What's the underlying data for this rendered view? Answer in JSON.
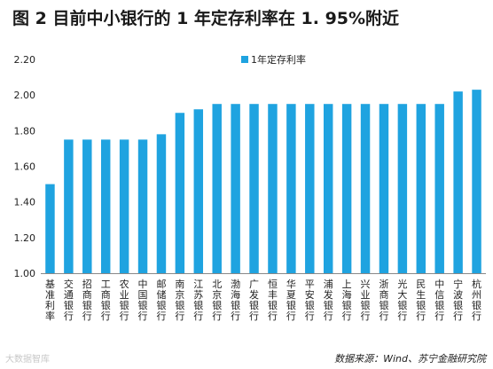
{
  "title": "图 2  目前中小银行的 1 年定存利率在 1. 95%附近",
  "source": "数据来源：Wind、苏宁金融研究院",
  "watermark": "大数据智库",
  "chart_data": {
    "type": "bar",
    "title": "图 2  目前中小银行的 1 年定存利率在 1. 95%附近",
    "xlabel": "",
    "ylabel": "",
    "ylim": [
      1.0,
      2.2
    ],
    "yticks": [
      "1.00",
      "1.20",
      "1.40",
      "1.60",
      "1.80",
      "2.00",
      "2.20"
    ],
    "grid": false,
    "legend_position": "top-center",
    "color": "#1FA3E0",
    "categories": [
      "基准利率",
      "交通银行",
      "招商银行",
      "工商银行",
      "农业银行",
      "中国银行",
      "邮储银行",
      "南京银行",
      "江苏银行",
      "北京银行",
      "渤海银行",
      "广发银行",
      "恒丰银行",
      "华夏银行",
      "平安银行",
      "浦发银行",
      "上海银行",
      "兴业银行",
      "浙商银行",
      "光大银行",
      "民生银行",
      "中信银行",
      "宁波银行",
      "杭州银行"
    ],
    "series": [
      {
        "name": "1年定存利率",
        "values": [
          1.5,
          1.75,
          1.75,
          1.75,
          1.75,
          1.75,
          1.78,
          1.9,
          1.92,
          1.95,
          1.95,
          1.95,
          1.95,
          1.95,
          1.95,
          1.95,
          1.95,
          1.95,
          1.95,
          1.95,
          1.95,
          1.95,
          2.02,
          2.03
        ]
      }
    ]
  }
}
